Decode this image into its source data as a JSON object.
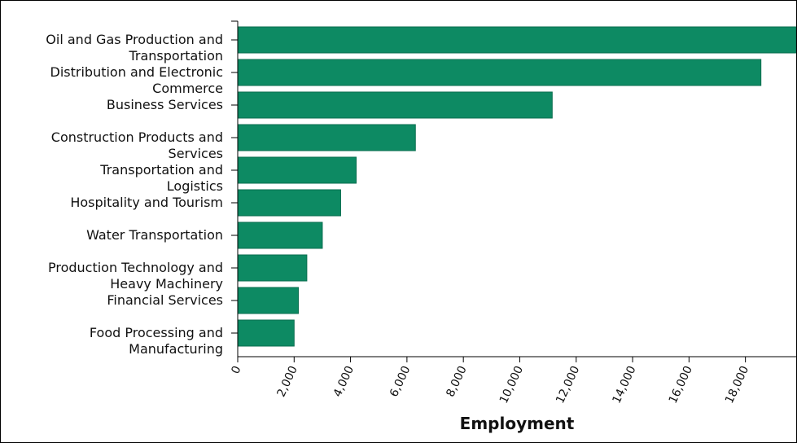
{
  "chart_data": {
    "type": "bar",
    "orientation": "horizontal",
    "categories": [
      [
        "Oil and Gas Production and",
        "Transportation"
      ],
      [
        "Distribution and Electronic",
        "Commerce"
      ],
      [
        "Business Services"
      ],
      [
        "Construction Products and",
        "Services"
      ],
      [
        "Transportation and",
        "Logistics"
      ],
      [
        "Hospitality and Tourism"
      ],
      [
        "Water Transportation"
      ],
      [
        "Production Technology and",
        "Heavy Machinery"
      ],
      [
        "Financial Services"
      ],
      [
        "Food Processing and",
        "Manufacturing"
      ]
    ],
    "values": [
      19800,
      18550,
      11150,
      6300,
      4200,
      3650,
      3000,
      2450,
      2150,
      2000
    ],
    "xlabel": "Employment",
    "ylabel": "",
    "xlim": [
      0,
      19800
    ],
    "x_ticks": [
      0,
      2000,
      4000,
      6000,
      8000,
      10000,
      12000,
      14000,
      16000,
      18000
    ],
    "x_tick_labels": [
      "0",
      "2,000",
      "4,000",
      "6,000",
      "8,000",
      "10,000",
      "12,000",
      "14,000",
      "16,000",
      "18,000"
    ],
    "grid": false,
    "legend": "none",
    "colors": {
      "bar_fill": "#0d8a63",
      "bar_stroke": "#0a6e4f",
      "axis": "#000000"
    }
  }
}
